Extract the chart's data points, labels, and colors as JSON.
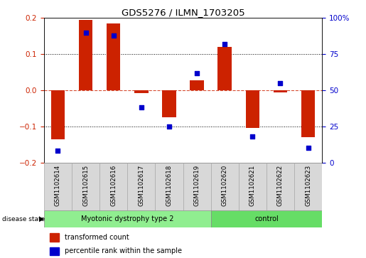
{
  "title": "GDS5276 / ILMN_1703205",
  "samples": [
    "GSM1102614",
    "GSM1102615",
    "GSM1102616",
    "GSM1102617",
    "GSM1102618",
    "GSM1102619",
    "GSM1102620",
    "GSM1102621",
    "GSM1102622",
    "GSM1102623"
  ],
  "transformed_count": [
    -0.135,
    0.195,
    0.185,
    -0.008,
    -0.075,
    0.028,
    0.12,
    -0.105,
    -0.005,
    -0.13
  ],
  "percentile_rank": [
    8,
    90,
    88,
    38,
    25,
    62,
    82,
    18,
    55,
    10
  ],
  "disease_groups": [
    {
      "label": "Myotonic dystrophy type 2",
      "start": 0,
      "end": 6,
      "color": "#90EE90"
    },
    {
      "label": "control",
      "start": 6,
      "end": 10,
      "color": "#66DD66"
    }
  ],
  "ylim_left": [
    -0.2,
    0.2
  ],
  "ylim_right": [
    0,
    100
  ],
  "yticks_left": [
    -0.2,
    -0.1,
    0.0,
    0.1,
    0.2
  ],
  "yticks_right": [
    0,
    25,
    50,
    75,
    100
  ],
  "ytick_labels_right": [
    "0",
    "25",
    "50",
    "75",
    "100%"
  ],
  "bar_color": "#CC2200",
  "dot_color": "#0000CC",
  "hline_vals": [
    -0.1,
    0.0,
    0.1
  ],
  "bar_width": 0.5,
  "dot_size": 22,
  "background_color": "#ffffff",
  "legend_items": [
    {
      "label": "transformed count",
      "color": "#CC2200"
    },
    {
      "label": "percentile rank within the sample",
      "color": "#0000CC"
    }
  ],
  "label_box_color": "#d8d8d8",
  "disease_state_text": "disease state"
}
